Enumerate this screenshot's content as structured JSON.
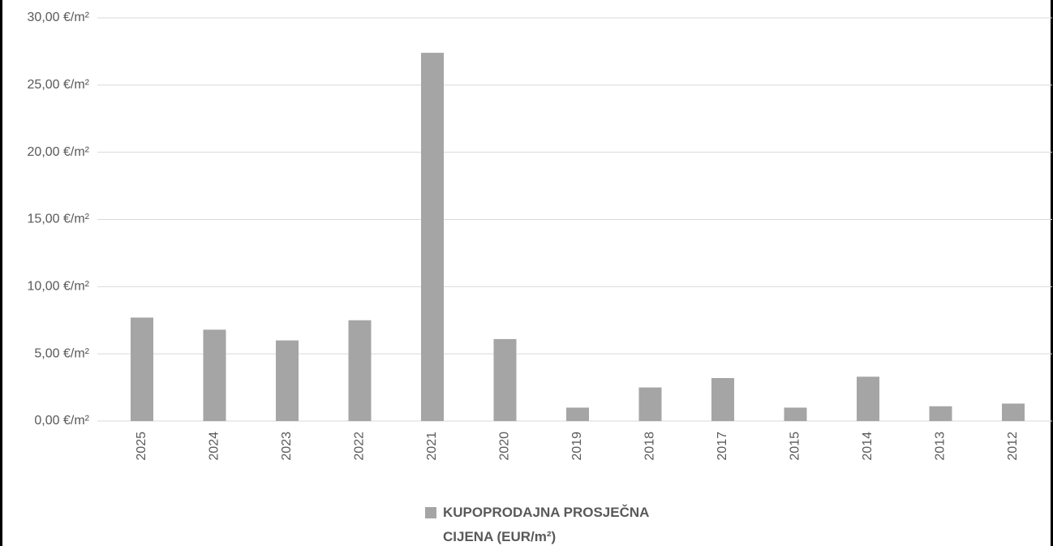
{
  "chart_data": {
    "type": "bar",
    "categories": [
      "2025",
      "2024",
      "2023",
      "2022",
      "2021",
      "2020",
      "2019",
      "2018",
      "2017",
      "2015",
      "2014",
      "2013",
      "2012"
    ],
    "series": [
      {
        "name": "KUPOPRODAJNA PROSJEČNA CIJENA (EUR/m²)",
        "color": "#a5a5a5",
        "values": [
          7.7,
          6.8,
          6.0,
          7.5,
          27.4,
          6.1,
          1.0,
          2.5,
          3.2,
          1.0,
          3.3,
          1.1,
          1.3
        ]
      }
    ],
    "ylim": [
      0,
      30
    ],
    "yticks": [
      {
        "value": 0,
        "label": "0,00 €/m²"
      },
      {
        "value": 5,
        "label": "5,00 €/m²"
      },
      {
        "value": 10,
        "label": "10,00 €/m²"
      },
      {
        "value": 15,
        "label": "15,00 €/m²"
      },
      {
        "value": 20,
        "label": "20,00 €/m²"
      },
      {
        "value": 25,
        "label": "25,00 €/m²"
      },
      {
        "value": 30,
        "label": "30,00 €/m²"
      }
    ],
    "grid": true,
    "legend": "bottom"
  }
}
